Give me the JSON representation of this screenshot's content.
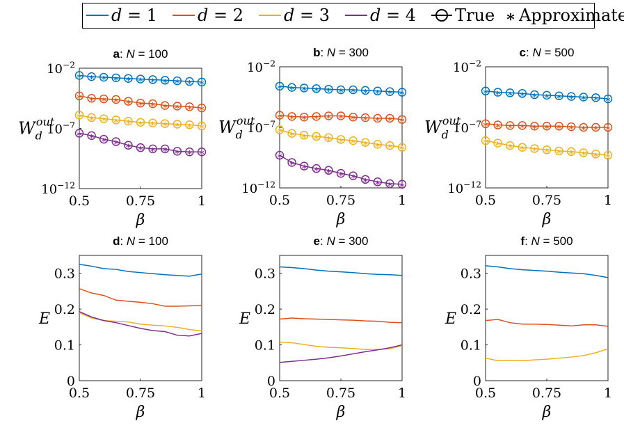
{
  "legend": {
    "entries": [
      {
        "label": "d = 1",
        "color": "#0072BD"
      },
      {
        "label": "d = 2",
        "color": "#D95319"
      },
      {
        "label": "d = 3",
        "color": "#EDB120"
      },
      {
        "label": "d = 4",
        "color": "#7E2F8E"
      }
    ],
    "true_label": "True",
    "approx_label": "Approximate"
  },
  "chart_data": [
    {
      "id": "a",
      "panel_letter": "a",
      "title_rest": ": N = 100",
      "type": "line",
      "yscale": "log",
      "xlabel": "β",
      "ylabel": "W_d^out",
      "xlim": [
        0.5,
        1
      ],
      "xticks": [
        "0.5",
        "0.75",
        "1"
      ],
      "ylim_log10": [
        -12,
        -2
      ],
      "yticks": [
        "10^-2",
        "10^-7",
        "10^-12"
      ],
      "x": [
        0.5,
        0.55,
        0.6,
        0.65,
        0.7,
        0.75,
        0.8,
        0.85,
        0.9,
        0.95,
        1.0
      ],
      "series": [
        {
          "name": "d = 1",
          "log10_values": [
            -2.6,
            -2.7,
            -2.75,
            -2.8,
            -2.85,
            -2.9,
            -2.95,
            -3.0,
            -3.05,
            -3.1,
            -3.15
          ]
        },
        {
          "name": "d = 2",
          "log10_values": [
            -4.3,
            -4.5,
            -4.55,
            -4.6,
            -4.75,
            -4.9,
            -4.95,
            -5.1,
            -5.15,
            -5.2,
            -5.3
          ]
        },
        {
          "name": "d = 3",
          "log10_values": [
            -5.9,
            -6.1,
            -6.2,
            -6.3,
            -6.4,
            -6.5,
            -6.55,
            -6.6,
            -6.65,
            -6.7,
            -6.8
          ]
        },
        {
          "name": "d = 4",
          "log10_values": [
            -7.4,
            -7.6,
            -7.9,
            -8.1,
            -8.4,
            -8.6,
            -8.7,
            -8.7,
            -8.9,
            -8.95,
            -8.95
          ]
        }
      ]
    },
    {
      "id": "b",
      "panel_letter": "b",
      "title_rest": ": N = 300",
      "type": "line",
      "yscale": "log",
      "xlabel": "β",
      "ylabel": "W_d^out",
      "xlim": [
        0.5,
        1
      ],
      "xticks": [
        "0.5",
        "0.75",
        "1"
      ],
      "ylim_log10": [
        -12,
        -2
      ],
      "yticks": [
        "10^-2",
        "10^-7",
        "10^-12"
      ],
      "x": [
        0.5,
        0.55,
        0.6,
        0.65,
        0.7,
        0.75,
        0.8,
        0.85,
        0.9,
        0.95,
        1.0
      ],
      "series": [
        {
          "name": "d = 1",
          "log10_values": [
            -3.6,
            -3.7,
            -3.75,
            -3.8,
            -3.85,
            -3.9,
            -3.9,
            -3.95,
            -4.0,
            -4.05,
            -4.1
          ]
        },
        {
          "name": "d = 2",
          "log10_values": [
            -6.0,
            -6.1,
            -6.15,
            -6.1,
            -6.05,
            -6.05,
            -6.15,
            -6.2,
            -6.25,
            -6.25,
            -6.35
          ]
        },
        {
          "name": "d = 3",
          "log10_values": [
            -7.2,
            -7.5,
            -7.65,
            -7.75,
            -7.85,
            -8.0,
            -8.1,
            -8.25,
            -8.4,
            -8.5,
            -8.65
          ]
        },
        {
          "name": "d = 4",
          "log10_values": [
            -9.3,
            -9.9,
            -10.2,
            -10.4,
            -10.55,
            -10.8,
            -11.0,
            -11.3,
            -11.5,
            -11.65,
            -11.7
          ]
        }
      ]
    },
    {
      "id": "c",
      "panel_letter": "c",
      "title_rest": ": N = 500",
      "type": "line",
      "yscale": "log",
      "xlabel": "β",
      "ylabel": "W_d^out",
      "xlim": [
        0.5,
        1
      ],
      "xticks": [
        "0.5",
        "0.75",
        "1"
      ],
      "ylim_log10": [
        -12,
        -2
      ],
      "yticks": [
        "10^-2",
        "10^-7",
        "10^-12"
      ],
      "x": [
        0.5,
        0.55,
        0.6,
        0.65,
        0.7,
        0.75,
        0.8,
        0.85,
        0.9,
        0.95,
        1.0
      ],
      "series": [
        {
          "name": "d = 1",
          "log10_values": [
            -4.0,
            -4.1,
            -4.15,
            -4.2,
            -4.3,
            -4.35,
            -4.4,
            -4.45,
            -4.5,
            -4.55,
            -4.65
          ]
        },
        {
          "name": "d = 2",
          "log10_values": [
            -6.7,
            -6.8,
            -6.85,
            -6.85,
            -6.9,
            -6.9,
            -6.9,
            -6.95,
            -7.0,
            -7.0,
            -7.0
          ]
        },
        {
          "name": "d = 3",
          "log10_values": [
            -8.1,
            -8.3,
            -8.5,
            -8.65,
            -8.75,
            -8.85,
            -8.95,
            -9.0,
            -9.1,
            -9.2,
            -9.3
          ]
        }
      ]
    },
    {
      "id": "d",
      "panel_letter": "d",
      "title_rest": ": N = 100",
      "type": "line",
      "yscale": "linear",
      "xlabel": "β",
      "ylabel": "E",
      "xlim": [
        0.5,
        1
      ],
      "xticks": [
        "0.5",
        "0.75",
        "1"
      ],
      "ylim": [
        0,
        0.35
      ],
      "yticks": [
        "0",
        "0.1",
        "0.2",
        "0.3"
      ],
      "x": [
        0.5,
        0.55,
        0.6,
        0.65,
        0.7,
        0.75,
        0.8,
        0.85,
        0.9,
        0.95,
        1.0
      ],
      "series": [
        {
          "name": "d = 1",
          "values": [
            0.325,
            0.32,
            0.313,
            0.311,
            0.305,
            0.302,
            0.299,
            0.296,
            0.294,
            0.292,
            0.298
          ]
        },
        {
          "name": "d = 2",
          "values": [
            0.257,
            0.245,
            0.238,
            0.225,
            0.222,
            0.219,
            0.215,
            0.208,
            0.208,
            0.209,
            0.21
          ]
        },
        {
          "name": "d = 3",
          "values": [
            0.19,
            0.175,
            0.168,
            0.166,
            0.164,
            0.158,
            0.155,
            0.153,
            0.149,
            0.143,
            0.139
          ]
        },
        {
          "name": "d = 4",
          "values": [
            0.193,
            0.178,
            0.168,
            0.162,
            0.154,
            0.146,
            0.14,
            0.137,
            0.127,
            0.125,
            0.132
          ]
        }
      ]
    },
    {
      "id": "e",
      "panel_letter": "e",
      "title_rest": ": N = 300",
      "type": "line",
      "yscale": "linear",
      "xlabel": "β",
      "ylabel": "E",
      "xlim": [
        0.5,
        1
      ],
      "xticks": [
        "0.5",
        "0.75",
        "1"
      ],
      "ylim": [
        0,
        0.35
      ],
      "yticks": [
        "0",
        "0.1",
        "0.2",
        "0.3"
      ],
      "x": [
        0.5,
        0.55,
        0.6,
        0.65,
        0.7,
        0.75,
        0.8,
        0.85,
        0.9,
        0.95,
        1.0
      ],
      "series": [
        {
          "name": "d = 1",
          "values": [
            0.318,
            0.316,
            0.313,
            0.309,
            0.306,
            0.304,
            0.302,
            0.299,
            0.297,
            0.296,
            0.294
          ]
        },
        {
          "name": "d = 2",
          "values": [
            0.172,
            0.175,
            0.173,
            0.172,
            0.171,
            0.17,
            0.169,
            0.167,
            0.166,
            0.163,
            0.162
          ]
        },
        {
          "name": "d = 3",
          "values": [
            0.108,
            0.106,
            0.101,
            0.096,
            0.093,
            0.092,
            0.09,
            0.087,
            0.087,
            0.089,
            0.098
          ]
        },
        {
          "name": "d = 4",
          "values": [
            0.051,
            0.054,
            0.057,
            0.06,
            0.064,
            0.069,
            0.075,
            0.081,
            0.086,
            0.092,
            0.1
          ]
        }
      ]
    },
    {
      "id": "f",
      "panel_letter": "f",
      "title_rest": ": N = 500",
      "type": "line",
      "yscale": "linear",
      "xlabel": "β",
      "ylabel": "E",
      "xlim": [
        0.5,
        1
      ],
      "xticks": [
        "0.5",
        "0.75",
        "1"
      ],
      "ylim": [
        0,
        0.35
      ],
      "yticks": [
        "0",
        "0.1",
        "0.2",
        "0.3"
      ],
      "x": [
        0.5,
        0.55,
        0.6,
        0.65,
        0.7,
        0.75,
        0.8,
        0.85,
        0.9,
        0.95,
        1.0
      ],
      "series": [
        {
          "name": "d = 1",
          "values": [
            0.321,
            0.318,
            0.313,
            0.31,
            0.308,
            0.306,
            0.303,
            0.301,
            0.299,
            0.294,
            0.288
          ]
        },
        {
          "name": "d = 2",
          "values": [
            0.168,
            0.171,
            0.162,
            0.158,
            0.158,
            0.157,
            0.155,
            0.153,
            0.156,
            0.156,
            0.152
          ]
        },
        {
          "name": "d = 3",
          "values": [
            0.063,
            0.056,
            0.057,
            0.056,
            0.058,
            0.06,
            0.063,
            0.066,
            0.07,
            0.078,
            0.089
          ]
        }
      ]
    }
  ]
}
